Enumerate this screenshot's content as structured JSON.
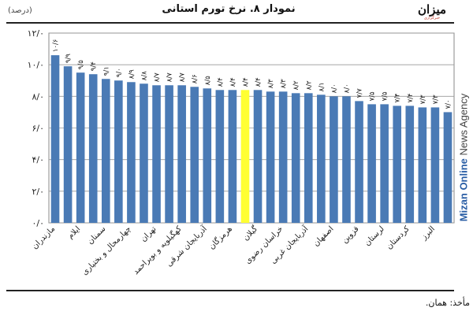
{
  "header": {
    "title": "نمودار ۸. نرخ تورم استانی",
    "unit": "(درصد)"
  },
  "logo": {
    "name": "میزان",
    "tagline": "خبرگزاری"
  },
  "watermark": {
    "strong": "Mizan Online",
    "rest": " News Agency"
  },
  "source_note": "مأخذ: همان.",
  "colors": {
    "bar": "#4a7ab5",
    "highlight": "#ffff33",
    "grid": "#999999"
  },
  "chart_data": {
    "type": "bar",
    "title": "نمودار ۸. نرخ تورم استانی",
    "ylabel": "(درصد)",
    "xlabel": "",
    "ylim": [
      0,
      12
    ],
    "yticks": [
      "۰/۰",
      "۲/۰",
      "۴/۰",
      "۶/۰",
      "۸/۰",
      "۱۰/۰",
      "۱۲/۰"
    ],
    "grid": true,
    "highlight_index": 15,
    "visible_x_labels": {
      "0": "مازندران",
      "2": "ایلام",
      "4": "سمنان",
      "6": "چهارمحال و بختیاری",
      "8": "تهران",
      "10": "کهگیلویه و بویراحمد",
      "12": "آذربایجان شرقی",
      "14": "هرمزگان",
      "16": "گیلان",
      "18": "خراسان رضوی",
      "20": "آذربایجان غربی",
      "22": "اصفهان",
      "24": "قزوین",
      "26": "لرستان",
      "28": "کردستان",
      "30": "البرز"
    },
    "values": [
      10.6,
      9.9,
      9.5,
      9.4,
      9.1,
      9.0,
      8.9,
      8.8,
      8.7,
      8.7,
      8.7,
      8.6,
      8.5,
      8.4,
      8.4,
      8.4,
      8.4,
      8.3,
      8.3,
      8.2,
      8.2,
      8.1,
      8.0,
      8.0,
      7.7,
      7.5,
      7.5,
      7.4,
      7.4,
      7.3,
      7.3,
      7.0
    ],
    "data_labels": [
      "۱۰/۶",
      "۹/۹",
      "۹/۵",
      "۹/۴",
      "۹/۱",
      "۹/۰",
      "۸/۹",
      "۸/۸",
      "۸/۷",
      "۸/۷",
      "۸/۷",
      "۸/۶",
      "۸/۵",
      "۸/۴",
      "۸/۴",
      "۸/۴",
      "۸/۴",
      "۸/۳",
      "۸/۳",
      "۸/۲",
      "۸/۲",
      "۸/۱",
      "۸/۰",
      "۸/۰",
      "۷/۷",
      "۷/۵",
      "۷/۵",
      "۷/۴",
      "۷/۴",
      "۷/۳",
      "۷/۳",
      "۷/۰"
    ]
  }
}
